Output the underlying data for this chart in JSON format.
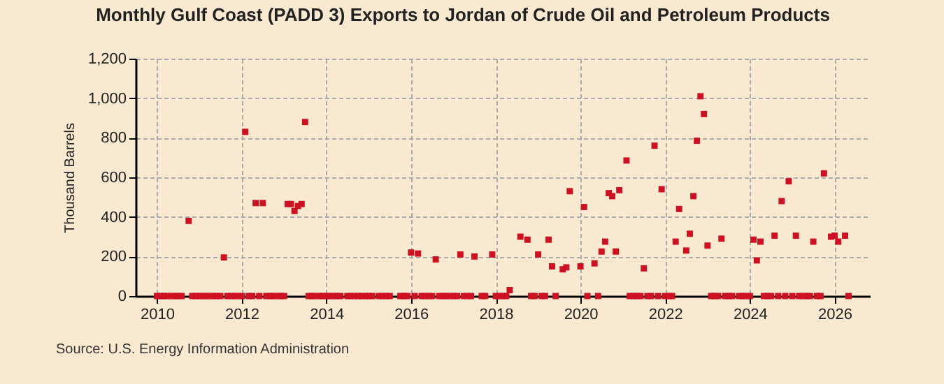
{
  "chart_data": {
    "type": "scatter",
    "title": "Monthly Gulf Coast (PADD 3) Exports to Jordan of Crude Oil and Petroleum Products",
    "ylabel": "Thousand Barrels",
    "annotations": [
      "Source: U.S. Energy Information Administration"
    ],
    "x": [
      "2010-01",
      "2010-02",
      "2010-03",
      "2010-04",
      "2010-05",
      "2010-06",
      "2010-07",
      "2010-08",
      "2010-10",
      "2010-11",
      "2010-12",
      "2011-01",
      "2011-02",
      "2011-03",
      "2011-04",
      "2011-05",
      "2011-06",
      "2011-07",
      "2011-08",
      "2011-09",
      "2011-10",
      "2011-11",
      "2011-12",
      "2012-01",
      "2012-02",
      "2012-03",
      "2012-04",
      "2012-05",
      "2012-06",
      "2012-07",
      "2012-08",
      "2012-09",
      "2012-10",
      "2012-11",
      "2012-12",
      "2013-01",
      "2013-02",
      "2013-03",
      "2013-04",
      "2013-05",
      "2013-06",
      "2013-07",
      "2013-08",
      "2013-09",
      "2013-10",
      "2013-11",
      "2013-12",
      "2014-01",
      "2014-02",
      "2014-03",
      "2014-04",
      "2014-05",
      "2014-07",
      "2014-08",
      "2014-09",
      "2014-10",
      "2014-11",
      "2014-12",
      "2015-01",
      "2015-02",
      "2015-04",
      "2015-05",
      "2015-06",
      "2015-07",
      "2015-10",
      "2015-11",
      "2015-12",
      "2016-01",
      "2016-02",
      "2016-03",
      "2016-04",
      "2016-05",
      "2016-06",
      "2016-07",
      "2016-08",
      "2016-09",
      "2016-10",
      "2016-11",
      "2016-12",
      "2017-01",
      "2017-02",
      "2017-03",
      "2017-04",
      "2017-05",
      "2017-06",
      "2017-07",
      "2017-09",
      "2017-10",
      "2017-12",
      "2018-01",
      "2018-02",
      "2018-03",
      "2018-04",
      "2018-05",
      "2018-08",
      "2018-10",
      "2018-11",
      "2018-12",
      "2019-01",
      "2019-02",
      "2019-03",
      "2019-04",
      "2019-05",
      "2019-06",
      "2019-08",
      "2019-09",
      "2019-10",
      "2020-01",
      "2020-02",
      "2020-03",
      "2020-05",
      "2020-06",
      "2020-07",
      "2020-08",
      "2020-09",
      "2020-10",
      "2020-11",
      "2020-12",
      "2021-02",
      "2021-03",
      "2021-04",
      "2021-05",
      "2021-06",
      "2021-07",
      "2021-08",
      "2021-09",
      "2021-10",
      "2021-11",
      "2021-12",
      "2022-01",
      "2022-02",
      "2022-03",
      "2022-04",
      "2022-05",
      "2022-07",
      "2022-08",
      "2022-09",
      "2022-10",
      "2022-11",
      "2022-12",
      "2023-01",
      "2023-02",
      "2023-03",
      "2023-04",
      "2023-05",
      "2023-06",
      "2023-07",
      "2023-08",
      "2023-10",
      "2023-11",
      "2023-12",
      "2024-01",
      "2024-02",
      "2024-03",
      "2024-04",
      "2024-05",
      "2024-06",
      "2024-07",
      "2024-08",
      "2024-09",
      "2024-10",
      "2024-11",
      "2024-12",
      "2025-01",
      "2025-02",
      "2025-03",
      "2025-04",
      "2025-05",
      "2025-06",
      "2025-07",
      "2025-08",
      "2025-09",
      "2025-10",
      "2025-12",
      "2026-01",
      "2026-02",
      "2026-04",
      "2026-05"
    ],
    "values": [
      0,
      0,
      0,
      0,
      0,
      0,
      0,
      0,
      380,
      0,
      0,
      0,
      0,
      0,
      0,
      0,
      0,
      0,
      195,
      0,
      0,
      0,
      0,
      0,
      830,
      0,
      0,
      470,
      0,
      470,
      0,
      0,
      0,
      0,
      0,
      0,
      465,
      465,
      430,
      455,
      465,
      880,
      0,
      0,
      0,
      0,
      0,
      0,
      0,
      0,
      0,
      0,
      0,
      0,
      0,
      0,
      0,
      0,
      0,
      0,
      0,
      0,
      0,
      0,
      0,
      0,
      0,
      220,
      0,
      215,
      0,
      0,
      0,
      0,
      185,
      0,
      0,
      0,
      0,
      0,
      0,
      210,
      0,
      0,
      0,
      200,
      0,
      0,
      210,
      0,
      0,
      0,
      0,
      30,
      300,
      285,
      0,
      0,
      210,
      0,
      0,
      285,
      150,
      0,
      135,
      145,
      530,
      150,
      450,
      0,
      165,
      0,
      225,
      275,
      520,
      505,
      225,
      535,
      685,
      0,
      0,
      0,
      0,
      140,
      0,
      0,
      760,
      0,
      540,
      0,
      0,
      0,
      275,
      440,
      230,
      315,
      505,
      785,
      1010,
      920,
      255,
      0,
      0,
      0,
      290,
      0,
      0,
      0,
      0,
      0,
      0,
      0,
      285,
      180,
      275,
      0,
      0,
      0,
      305,
      0,
      480,
      0,
      580,
      0,
      305,
      0,
      0,
      0,
      0,
      275,
      0,
      0,
      620,
      300,
      305,
      275,
      305,
      0
    ],
    "color": "#cc1122",
    "marker": "square",
    "grid": true,
    "xlim": [
      "2009-07",
      "2026-11"
    ],
    "xticks": [
      "2010",
      "2012",
      "2014",
      "2016",
      "2018",
      "2020",
      "2022",
      "2024",
      "2026"
    ],
    "ylim": [
      0,
      1200
    ],
    "yticks": [
      0,
      200,
      400,
      600,
      800,
      {
        "value": 1000,
        "label": "1,000"
      },
      {
        "value": 1200,
        "label": "1,200"
      }
    ]
  }
}
